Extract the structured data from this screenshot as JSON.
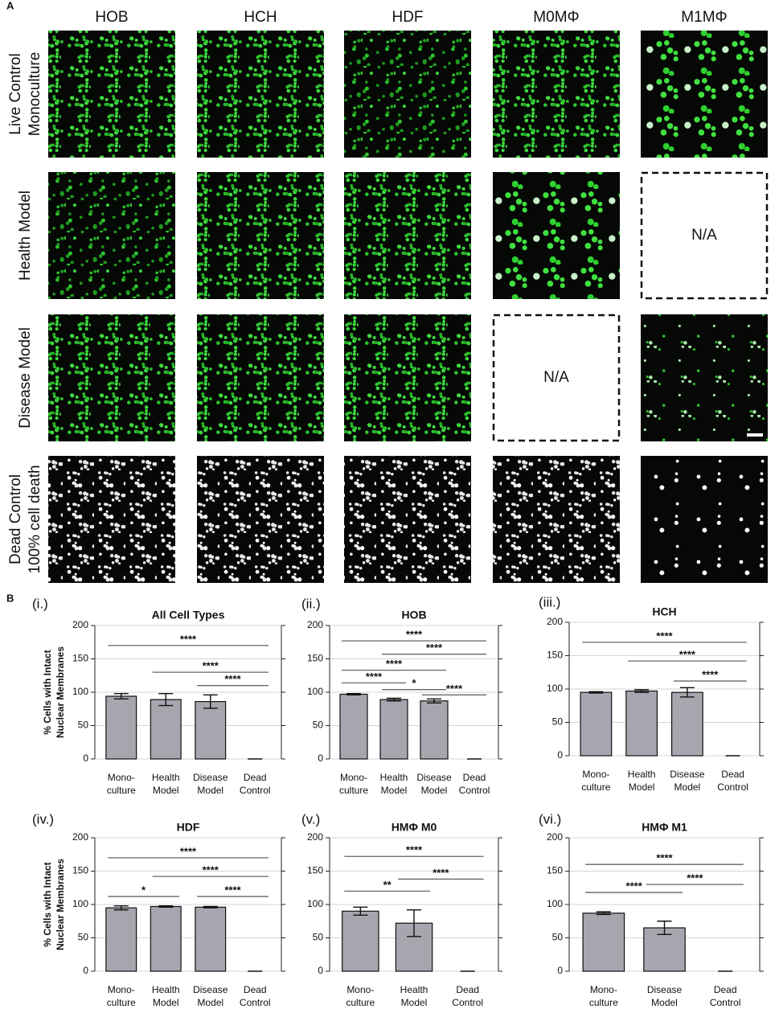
{
  "panel_labels": [
    "A",
    "B"
  ],
  "panel_a": {
    "columns": [
      "HOB",
      "HCH",
      "HDF",
      "M0MΦ",
      "M1MΦ"
    ],
    "rows": [
      [
        "Live Control",
        "Monoculture"
      ],
      [
        "Health Model"
      ],
      [
        "Disease Model"
      ],
      [
        "Dead Control",
        "100% cell death"
      ]
    ],
    "na_labels": [
      "N/A",
      "N/A"
    ]
  },
  "chart_data": [
    {
      "type": "bar",
      "panel": "(i.)",
      "title": "All Cell Types",
      "ylabel": [
        "% Cells with Intact",
        "Nuclear Membranes"
      ],
      "categories": [
        [
          "Mono-",
          "culture"
        ],
        [
          "Health",
          "Model"
        ],
        [
          "Disease",
          "Model"
        ],
        [
          "Dead",
          "Control"
        ]
      ],
      "values": [
        94,
        89,
        86,
        0
      ],
      "errors": [
        4,
        9,
        10,
        0
      ],
      "color": "#a6a6ae",
      "ylim": [
        0,
        200
      ],
      "yticks": [
        0,
        50,
        100,
        150,
        200
      ],
      "grid": true,
      "significance": [
        {
          "from": 0,
          "to": 3,
          "y": 170,
          "label": "****"
        },
        {
          "from": 1,
          "to": 3,
          "y": 130,
          "label": "****"
        },
        {
          "from": 2,
          "to": 3,
          "y": 110,
          "label": "****"
        }
      ]
    },
    {
      "type": "bar",
      "panel": "(ii.)",
      "title": "HOB",
      "categories": [
        [
          "Mono-",
          "culture"
        ],
        [
          "Health",
          "Model"
        ],
        [
          "Disease",
          "Model"
        ],
        [
          "Dead",
          "Control"
        ]
      ],
      "values": [
        97,
        89,
        87,
        0
      ],
      "errors": [
        1,
        2,
        3,
        0
      ],
      "color": "#a6a6ae",
      "ylim": [
        0,
        200
      ],
      "yticks": [
        0,
        50,
        100,
        150,
        200
      ],
      "grid": true,
      "significance": [
        {
          "from": 0,
          "to": 3,
          "y": 177,
          "label": "****"
        },
        {
          "from": 1,
          "to": 3,
          "y": 157,
          "label": "****"
        },
        {
          "from": 0,
          "to": 2,
          "y": 133,
          "label": "****"
        },
        {
          "from": 0,
          "to": 1,
          "y": 114,
          "label": "****"
        },
        {
          "from": 1,
          "to": 2,
          "y": 104,
          "label": "*"
        },
        {
          "from": 2,
          "to": 3,
          "y": 96,
          "label": "****"
        }
      ]
    },
    {
      "type": "bar",
      "panel": "(iii.)",
      "title": "HCH",
      "categories": [
        [
          "Mono-",
          "culture"
        ],
        [
          "Health",
          "Model"
        ],
        [
          "Disease",
          "Model"
        ],
        [
          "Dead",
          "Control"
        ]
      ],
      "values": [
        95,
        97,
        95,
        0
      ],
      "errors": [
        1,
        2,
        7,
        0
      ],
      "color": "#a6a6ae",
      "ylim": [
        0,
        200
      ],
      "yticks": [
        0,
        50,
        100,
        150,
        200
      ],
      "grid": true,
      "significance": [
        {
          "from": 0,
          "to": 3,
          "y": 170,
          "label": "****"
        },
        {
          "from": 1,
          "to": 3,
          "y": 142,
          "label": "****"
        },
        {
          "from": 2,
          "to": 3,
          "y": 112,
          "label": "****"
        }
      ]
    },
    {
      "type": "bar",
      "panel": "(iv.)",
      "title": "HDF",
      "ylabel": [
        "% Cells with Intact",
        "Nuclear Membranes"
      ],
      "categories": [
        [
          "Mono-",
          "culture"
        ],
        [
          "Health",
          "Model"
        ],
        [
          "Disease",
          "Model"
        ],
        [
          "Dead",
          "Control"
        ]
      ],
      "values": [
        95,
        97,
        96,
        0
      ],
      "errors": [
        3,
        1,
        1,
        0
      ],
      "color": "#a6a6ae",
      "ylim": [
        0,
        200
      ],
      "yticks": [
        0,
        50,
        100,
        150,
        200
      ],
      "grid": true,
      "significance": [
        {
          "from": 0,
          "to": 3,
          "y": 170,
          "label": "****"
        },
        {
          "from": 1,
          "to": 3,
          "y": 142,
          "label": "****"
        },
        {
          "from": 0,
          "to": 1,
          "y": 112,
          "label": "*"
        },
        {
          "from": 2,
          "to": 3,
          "y": 112,
          "label": "****"
        }
      ]
    },
    {
      "type": "bar",
      "panel": "(v.)",
      "title": "HMΦ M0",
      "categories": [
        [
          "Mono-",
          "culture"
        ],
        [
          "Health",
          "Model"
        ],
        [
          "Dead",
          "Control"
        ]
      ],
      "values": [
        90,
        72,
        0
      ],
      "errors": [
        6,
        20,
        0
      ],
      "color": "#a6a6ae",
      "ylim": [
        0,
        200
      ],
      "yticks": [
        0,
        50,
        100,
        150,
        200
      ],
      "grid": true,
      "significance": [
        {
          "from": 0,
          "to": 2,
          "y": 172,
          "label": "****"
        },
        {
          "from": 1,
          "to": 2,
          "y": 138,
          "label": "****"
        },
        {
          "from": 0,
          "to": 1,
          "y": 120,
          "label": "**"
        }
      ]
    },
    {
      "type": "bar",
      "panel": "(vi.)",
      "title": "HMΦ M1",
      "categories": [
        [
          "Mono-",
          "culture"
        ],
        [
          "Disease",
          "Model"
        ],
        [
          "Dead",
          "Control"
        ]
      ],
      "values": [
        87,
        65,
        0
      ],
      "errors": [
        2,
        10,
        0
      ],
      "color": "#a6a6ae",
      "ylim": [
        0,
        200
      ],
      "yticks": [
        0,
        50,
        100,
        150,
        200
      ],
      "grid": true,
      "significance": [
        {
          "from": 0,
          "to": 2,
          "y": 160,
          "label": "****"
        },
        {
          "from": 0,
          "to": 1,
          "y": 118,
          "label": "****"
        },
        {
          "from": 1,
          "to": 2,
          "y": 130,
          "label": "****"
        }
      ]
    }
  ]
}
